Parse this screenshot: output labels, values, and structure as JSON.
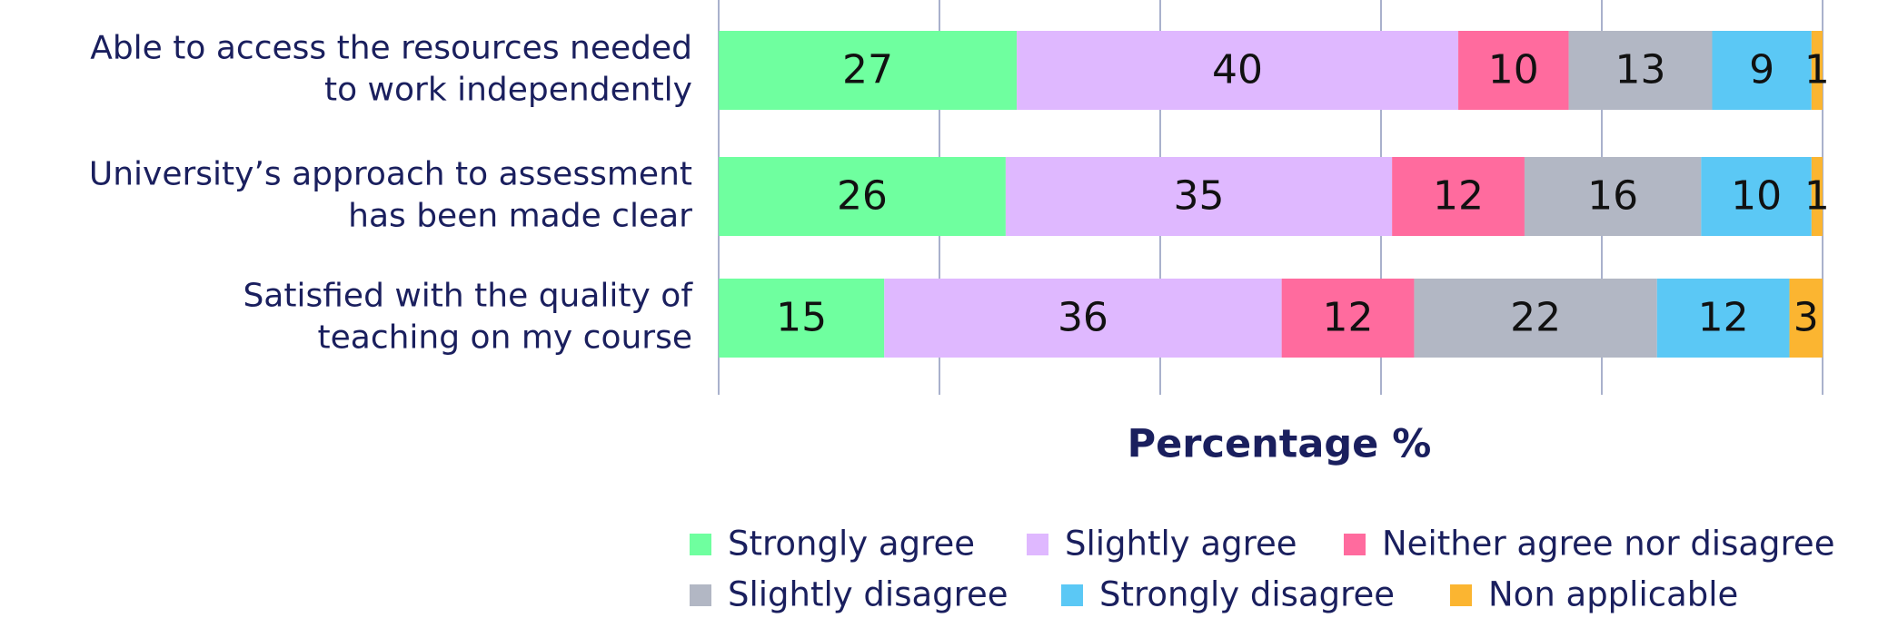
{
  "chart_data": {
    "type": "stacked-barh",
    "categories": [
      [
        "Able to access the resources needed",
        "to work independently"
      ],
      [
        "University’s approach to assessment",
        "has been made clear"
      ],
      [
        "Satisfied with the quality of",
        "teaching on my course"
      ]
    ],
    "series": [
      {
        "name": "Strongly agree",
        "color": "#6fff9f",
        "values": [
          27,
          26,
          15
        ]
      },
      {
        "name": "Slightly agree",
        "color": "#dfb8ff",
        "values": [
          40,
          35,
          36
        ]
      },
      {
        "name": "Neither agree nor disagree",
        "color": "#ff6b9e",
        "values": [
          10,
          12,
          12
        ]
      },
      {
        "name": "Slightly disagree",
        "color": "#b2b7c4",
        "values": [
          13,
          16,
          22
        ]
      },
      {
        "name": "Strongly disagree",
        "color": "#5bc8f5",
        "values": [
          9,
          10,
          12
        ]
      },
      {
        "name": "Non applicable",
        "color": "#fbb531",
        "values": [
          1,
          1,
          3
        ]
      }
    ],
    "x_label": "Percentage %",
    "xlim": [
      0,
      100
    ],
    "xticks": [
      0,
      20,
      40,
      60,
      80,
      100
    ],
    "grid": true
  }
}
